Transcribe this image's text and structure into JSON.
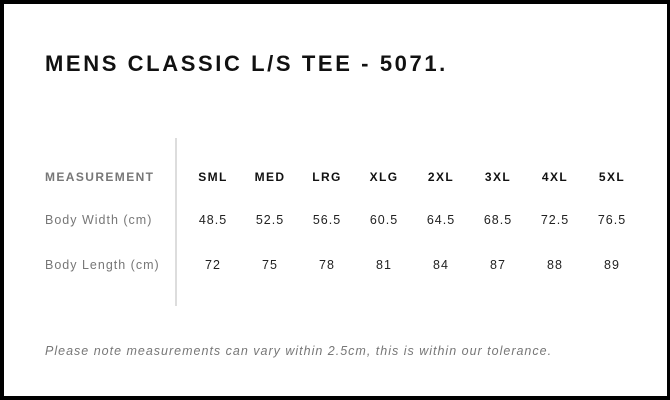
{
  "title": "MENS CLASSIC L/S TEE - 5071.",
  "table": {
    "header_label": "MEASUREMENT",
    "sizes": [
      "SML",
      "MED",
      "LRG",
      "XLG",
      "2XL",
      "3XL",
      "4XL",
      "5XL"
    ],
    "rows": [
      {
        "label": "Body Width (cm)",
        "values": [
          "48.5",
          "52.5",
          "56.5",
          "60.5",
          "64.5",
          "68.5",
          "72.5",
          "76.5"
        ]
      },
      {
        "label": "Body Length (cm)",
        "values": [
          "72",
          "75",
          "78",
          "81",
          "84",
          "87",
          "88",
          "89"
        ]
      }
    ]
  },
  "note": "Please note measurements can vary within 2.5cm, this is within our tolerance.",
  "colors": {
    "border": "#000000",
    "label_text": "#777777",
    "divider": "#dddddd"
  }
}
